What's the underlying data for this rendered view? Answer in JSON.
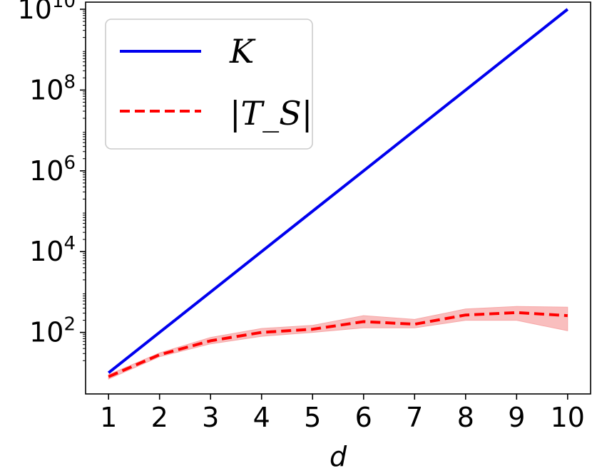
{
  "chart_data": {
    "type": "line",
    "xlabel": "d",
    "ylabel": "",
    "yscale": "log",
    "x": [
      1,
      2,
      3,
      4,
      5,
      6,
      7,
      8,
      9,
      10
    ],
    "xlim": [
      0.55,
      10.45
    ],
    "ylim": [
      3.0,
      15000000000
    ],
    "yticks": [
      {
        "base": "10",
        "exp": "2"
      },
      {
        "base": "10",
        "exp": "4"
      },
      {
        "base": "10",
        "exp": "6"
      },
      {
        "base": "10",
        "exp": "8"
      },
      {
        "base": "10",
        "exp": "10"
      }
    ],
    "yticks_values": [
      100,
      10000,
      1000000,
      100000000,
      10000000000
    ],
    "xticks": [
      "1",
      "2",
      "3",
      "4",
      "5",
      "6",
      "7",
      "8",
      "9",
      "10"
    ],
    "legend_position": "top-left",
    "grid": false,
    "series": [
      {
        "name": "K",
        "color": "#0000ee",
        "style": "solid",
        "values": [
          10,
          100,
          1000,
          10000,
          100000,
          1000000,
          10000000,
          100000000,
          1000000000,
          10000000000
        ]
      },
      {
        "name": "|T_S|",
        "color": "#ff0000",
        "style": "dashed",
        "values": [
          8,
          28,
          62,
          100,
          120,
          185,
          160,
          270,
          310,
          260
        ],
        "band_lower": [
          7,
          25,
          52,
          80,
          100,
          130,
          130,
          200,
          200,
          110
        ],
        "band_upper": [
          9,
          31,
          75,
          125,
          150,
          260,
          210,
          380,
          440,
          420
        ],
        "band_color": "#f7a8a8"
      }
    ]
  }
}
